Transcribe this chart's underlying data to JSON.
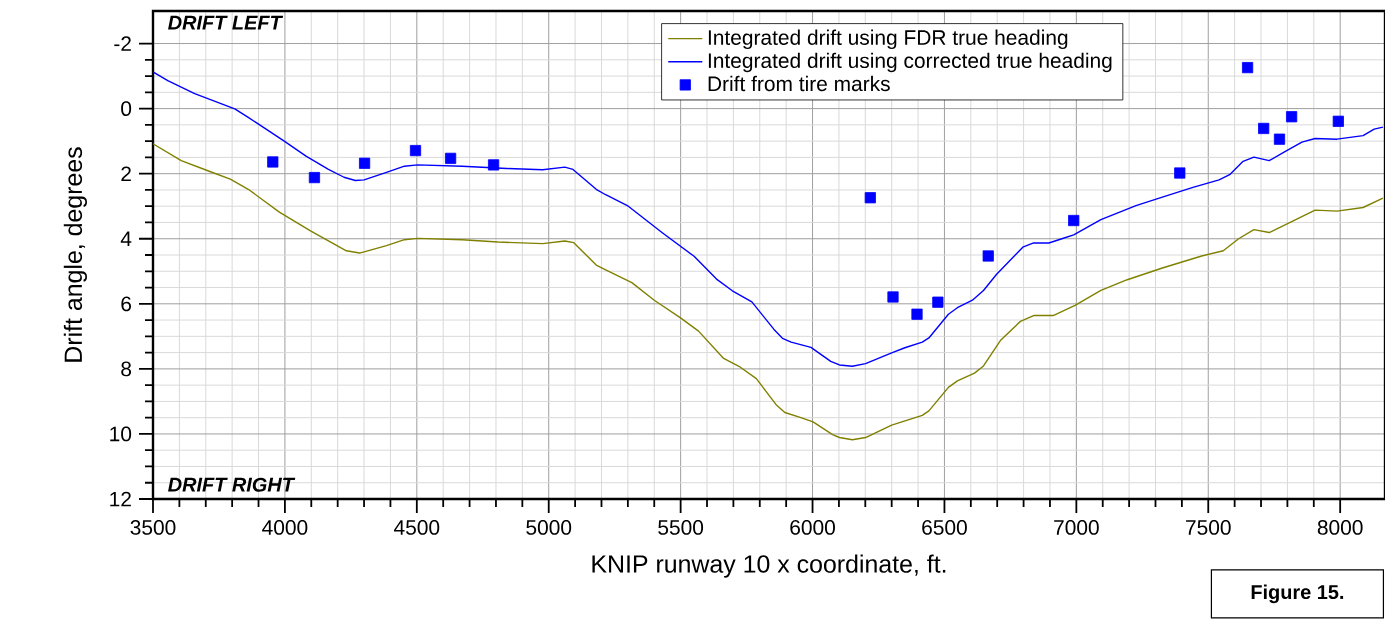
{
  "chart_data": {
    "type": "line",
    "xlabel": "KNIP runway 10 x coordinate, ft.",
    "ylabel": "Drift angle, degrees",
    "xlim": [
      3500,
      8170
    ],
    "ylim": [
      12,
      -3
    ],
    "xticks": [
      3500,
      4000,
      4500,
      5000,
      5500,
      6000,
      6500,
      7000,
      7500,
      8000
    ],
    "yticks": [
      -2,
      0,
      2,
      4,
      6,
      8,
      10,
      12
    ],
    "grid": true,
    "legend": "top",
    "annotations": [
      "DRIFT LEFT",
      "DRIFT RIGHT",
      "Figure 15."
    ],
    "series": [
      {
        "name": "Integrated drift using FDR true heading",
        "color": "#808000",
        "x": [
          3500,
          3607,
          3708,
          3793,
          3861,
          3979,
          4097,
          4233,
          4283,
          4385,
          4453,
          4503,
          4672,
          4807,
          4977,
          5061,
          5095,
          5180,
          5214,
          5315,
          5400,
          5501,
          5568,
          5663,
          5721,
          5787,
          5862,
          5895,
          5953,
          6002,
          6076,
          6102,
          6151,
          6201,
          6300,
          6416,
          6441,
          6515,
          6549,
          6614,
          6648,
          6714,
          6788,
          6838,
          6912,
          6995,
          7093,
          7193,
          7326,
          7475,
          7557,
          7615,
          7673,
          7731,
          7822,
          7905,
          7988,
          8087,
          8162
        ],
        "values": [
          1.08,
          1.6,
          1.91,
          2.17,
          2.48,
          3.18,
          3.76,
          4.37,
          4.44,
          4.21,
          4.03,
          3.99,
          4.03,
          4.1,
          4.15,
          4.07,
          4.12,
          4.81,
          4.95,
          5.35,
          5.89,
          6.44,
          6.84,
          7.68,
          7.92,
          8.3,
          9.1,
          9.34,
          9.49,
          9.63,
          10.02,
          10.11,
          10.18,
          10.11,
          9.73,
          9.43,
          9.29,
          8.57,
          8.37,
          8.13,
          7.91,
          7.11,
          6.54,
          6.36,
          6.36,
          6.05,
          5.59,
          5.26,
          4.9,
          4.53,
          4.37,
          4.0,
          3.72,
          3.81,
          3.45,
          3.12,
          3.15,
          3.04,
          2.75
        ]
      },
      {
        "name": "Integrated drift using corrected true heading",
        "color": "#0000ff",
        "x": [
          3500,
          3556,
          3658,
          3810,
          3861,
          3996,
          4080,
          4165,
          4224,
          4267,
          4300,
          4385,
          4453,
          4503,
          4672,
          4841,
          4977,
          5061,
          5092,
          5180,
          5214,
          5298,
          5433,
          5551,
          5636,
          5696,
          5770,
          5853,
          5886,
          5919,
          5994,
          6069,
          6102,
          6151,
          6201,
          6300,
          6350,
          6416,
          6441,
          6515,
          6549,
          6606,
          6648,
          6697,
          6797,
          6838,
          6896,
          6945,
          6990,
          7093,
          7226,
          7326,
          7442,
          7541,
          7583,
          7632,
          7673,
          7731,
          7789,
          7855,
          7905,
          7988,
          8087,
          8129,
          8162
        ],
        "values": [
          -1.13,
          -0.86,
          -0.46,
          0.01,
          0.27,
          0.99,
          1.46,
          1.87,
          2.11,
          2.21,
          2.19,
          1.96,
          1.77,
          1.73,
          1.77,
          1.84,
          1.88,
          1.8,
          1.87,
          2.48,
          2.64,
          2.98,
          3.83,
          4.54,
          5.24,
          5.6,
          5.94,
          6.78,
          7.06,
          7.18,
          7.34,
          7.77,
          7.88,
          7.92,
          7.84,
          7.51,
          7.35,
          7.18,
          7.05,
          6.32,
          6.12,
          5.89,
          5.59,
          5.1,
          4.26,
          4.13,
          4.13,
          4.0,
          3.88,
          3.41,
          2.98,
          2.72,
          2.42,
          2.19,
          2.02,
          1.62,
          1.49,
          1.6,
          1.33,
          1.03,
          0.92,
          0.94,
          0.83,
          0.63,
          0.57
        ]
      },
      {
        "name": "Drift from tire marks",
        "type": "scatter",
        "marker": "square",
        "color": "#0000ff",
        "x": [
          3954,
          4112,
          4302,
          4495,
          4628,
          4791,
          6219,
          6305,
          6396,
          6475,
          6666,
          6990,
          7392,
          7649,
          7710,
          7770,
          7816,
          7993
        ],
        "values": [
          1.64,
          2.12,
          1.68,
          1.29,
          1.53,
          1.73,
          2.74,
          5.79,
          6.32,
          5.95,
          4.53,
          3.44,
          1.98,
          -1.26,
          0.61,
          0.94,
          0.25,
          0.39
        ]
      }
    ]
  }
}
